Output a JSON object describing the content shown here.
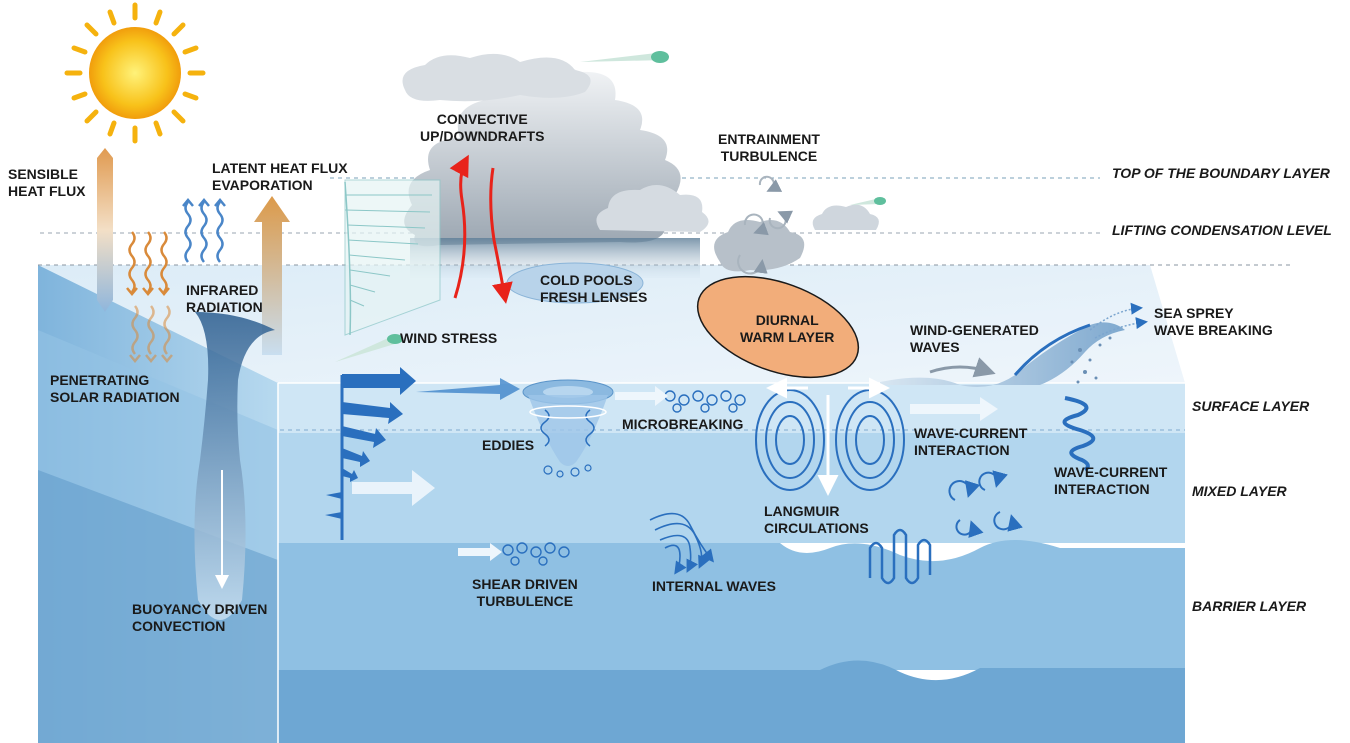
{
  "labels": {
    "sensible_heat_flux": [
      "SENSIBLE",
      "HEAT FLUX"
    ],
    "latent_heat_flux": [
      "LATENT HEAT FLUX",
      "EVAPORATION"
    ],
    "infrared_radiation": [
      "INFRARED",
      "RADIATION"
    ],
    "penetrating_solar_radiation": [
      "PENETRATING",
      "SOLAR RADIATION"
    ],
    "buoyancy_driven_convection": [
      "BUOYANCY DRIVEN",
      "CONVECTION"
    ],
    "convective_updowndrafts": [
      "CONVECTIVE",
      "UP/DOWNDRAFTS"
    ],
    "entrainment_turbulence": [
      "ENTRAINMENT",
      "TURBULENCE"
    ],
    "cold_pools": [
      "COLD POOLS",
      "FRESH LENSES"
    ],
    "diurnal_warm_layer": [
      "DIURNAL",
      "WARM LAYER"
    ],
    "wind_stress": [
      "WIND STRESS"
    ],
    "wind_generated_waves": [
      "WIND-GENERATED",
      "WAVES"
    ],
    "sea_spray": [
      "SEA SPREY",
      "WAVE BREAKING"
    ],
    "eddies": [
      "EDDIES"
    ],
    "microbreaking": [
      "MICROBREAKING"
    ],
    "wave_current_interaction_1": [
      "WAVE-CURRENT",
      "INTERACTION"
    ],
    "wave_current_interaction_2": [
      "WAVE-CURRENT",
      "INTERACTION"
    ],
    "langmuir_circulations": [
      "LANGMUIR",
      "CIRCULATIONS"
    ],
    "shear_driven_turbulence": [
      "SHEAR DRIVEN",
      "TURBULENCE"
    ],
    "internal_waves": [
      "INTERNAL WAVES"
    ]
  },
  "layers": {
    "top_of_boundary_layer": "TOP OF THE BOUNDARY LAYER",
    "lifting_condensation_level": "LIFTING CONDENSATION LEVEL",
    "surface_layer": "SURFACE LAYER",
    "mixed_layer": "MIXED LAYER",
    "barrier_layer": "BARRIER LAYER"
  },
  "colors": {
    "ocean_surface": "#cfe6f5",
    "ocean_mixed": "#b2d6ee",
    "ocean_barrier": "#8fc0e3",
    "ocean_deep": "#6ea7d3",
    "side_face": "#a9d0ec",
    "sun": "#f7b80f",
    "warm_layer": "#f2ad7a",
    "updraft_arrow": "#e8231a",
    "process_arrow": "#2a6fbe",
    "heat_flux_arrow": "#e2a35c"
  }
}
